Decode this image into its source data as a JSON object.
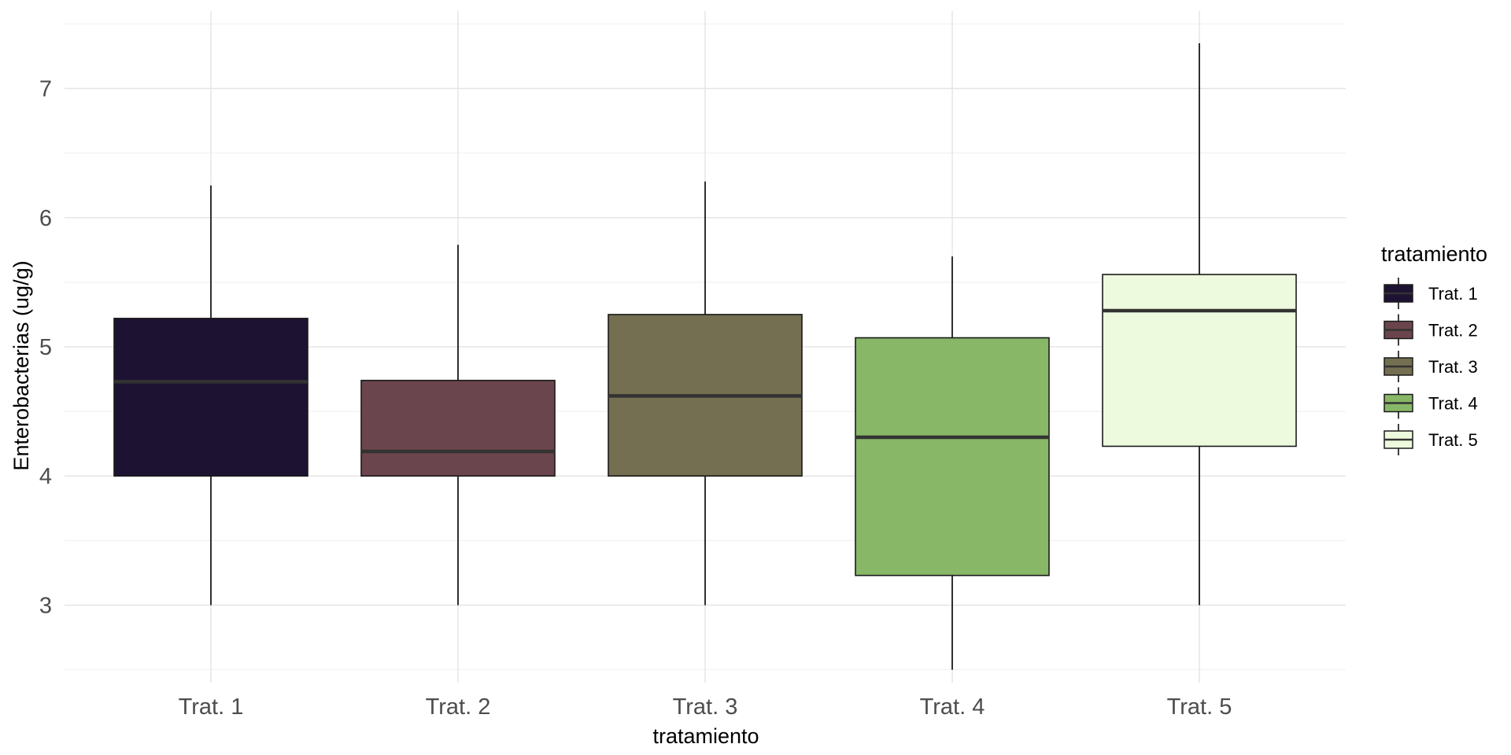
{
  "chart_data": {
    "type": "boxplot",
    "title": "",
    "xlabel": "tratamiento",
    "ylabel": "Enterobacterias (ug/g)",
    "ylim": [
      2.4,
      7.6
    ],
    "yticks": [
      3,
      4,
      5,
      6,
      7
    ],
    "grid": true,
    "legend": {
      "title": "tratamiento",
      "position": "right"
    },
    "categories": [
      "Trat. 1",
      "Trat. 2",
      "Trat. 3",
      "Trat. 4",
      "Trat. 5"
    ],
    "boxes": [
      {
        "name": "Trat. 1",
        "min": 3.0,
        "q1": 4.0,
        "median": 4.73,
        "q3": 5.22,
        "max": 6.25,
        "color": "#1e1233"
      },
      {
        "name": "Trat. 2",
        "min": 3.0,
        "q1": 4.0,
        "median": 4.19,
        "q3": 4.74,
        "max": 5.79,
        "color": "#6b454d"
      },
      {
        "name": "Trat. 3",
        "min": 3.0,
        "q1": 4.0,
        "median": 4.62,
        "q3": 5.25,
        "max": 6.28,
        "color": "#746f51"
      },
      {
        "name": "Trat. 4",
        "min": 2.5,
        "q1": 3.23,
        "median": 4.3,
        "q3": 5.07,
        "max": 5.7,
        "color": "#88b767"
      },
      {
        "name": "Trat. 5",
        "min": 3.0,
        "q1": 4.23,
        "median": 5.28,
        "q3": 5.56,
        "max": 7.35,
        "color": "#eefadd"
      }
    ]
  }
}
